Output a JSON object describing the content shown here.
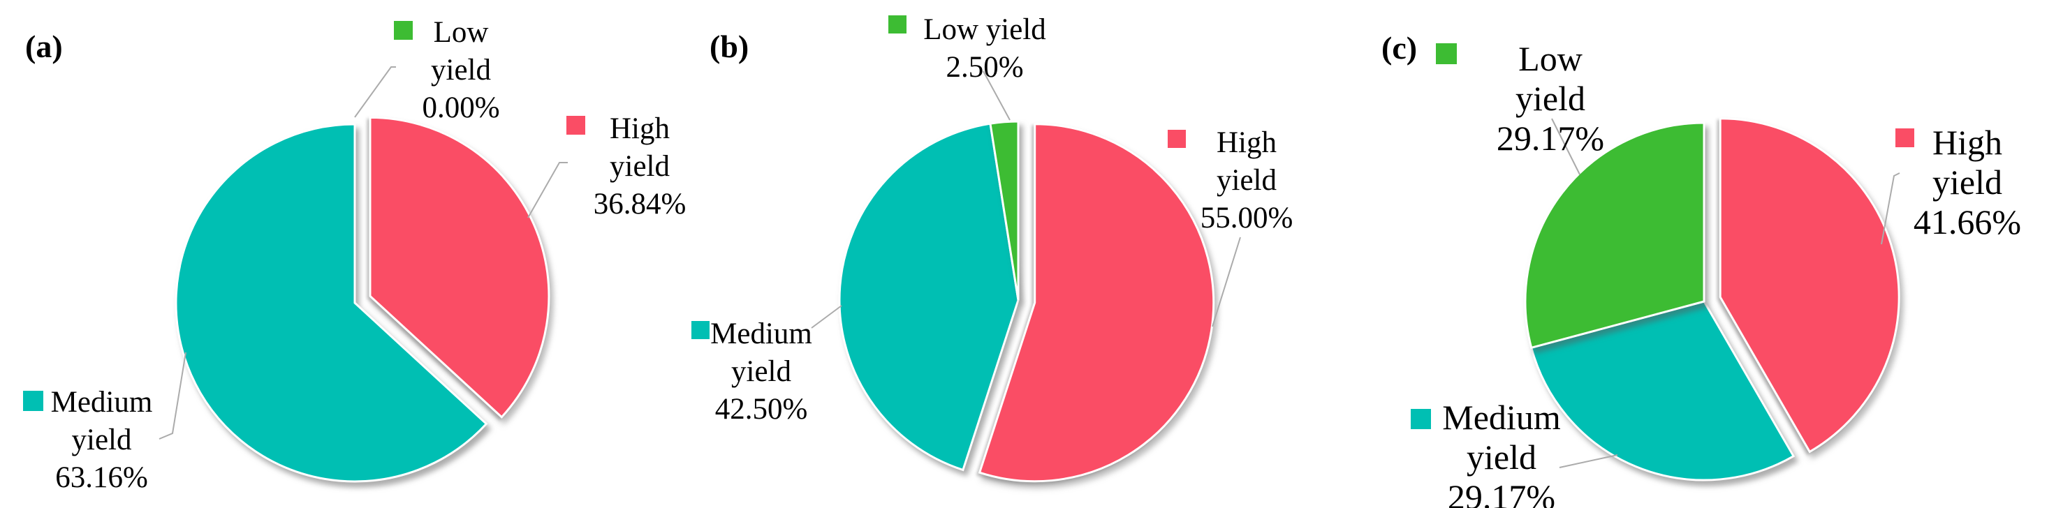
{
  "panels": [
    {
      "tag": "(a)",
      "legends": {
        "low": {
          "lines": [
            "Low",
            "yield",
            "0.00%"
          ]
        },
        "high": {
          "lines": [
            "High",
            "yield",
            "36.84%"
          ]
        },
        "medium": {
          "lines": [
            "Medium",
            "yield",
            "63.16%"
          ]
        }
      }
    },
    {
      "tag": "(b)",
      "legends": {
        "low": {
          "lines": [
            "Low yield",
            "2.50%"
          ]
        },
        "high": {
          "lines": [
            "High",
            "yield",
            "55.00%"
          ]
        },
        "medium": {
          "lines": [
            "Medium",
            "yield",
            "42.50%"
          ]
        }
      }
    },
    {
      "tag": "(c)",
      "legends": {
        "low": {
          "lines": [
            "Low yield",
            "29.17%"
          ]
        },
        "high": {
          "lines": [
            "High",
            "yield",
            "41.66%"
          ]
        },
        "medium": {
          "lines": [
            "Medium",
            "yield",
            "29.17%"
          ]
        }
      }
    }
  ],
  "chart_data": [
    {
      "type": "pie",
      "panel": "(a)",
      "start_angle": "12 o'clock",
      "direction": "clockwise",
      "slices": [
        {
          "label": "High yield",
          "value": 36.84,
          "color": "#FA4D65",
          "exploded": true
        },
        {
          "label": "Medium yield",
          "value": 63.16,
          "color": "#00BFB3",
          "exploded": false
        },
        {
          "label": "Low yield",
          "value": 0.0,
          "color": "#3DBC33",
          "exploded": false
        }
      ]
    },
    {
      "type": "pie",
      "panel": "(b)",
      "start_angle": "12 o'clock",
      "direction": "clockwise",
      "slices": [
        {
          "label": "High yield",
          "value": 55.0,
          "color": "#FA4D65",
          "exploded": true
        },
        {
          "label": "Medium yield",
          "value": 42.5,
          "color": "#00BFB3",
          "exploded": false
        },
        {
          "label": "Low yield",
          "value": 2.5,
          "color": "#3DBC33",
          "exploded": false
        }
      ]
    },
    {
      "type": "pie",
      "panel": "(c)",
      "start_angle": "12 o'clock",
      "direction": "clockwise",
      "slices": [
        {
          "label": "High yield",
          "value": 41.66,
          "color": "#FA4D65",
          "exploded": true
        },
        {
          "label": "Medium yield",
          "value": 29.17,
          "color": "#00BFB3",
          "exploded": false
        },
        {
          "label": "Low yield",
          "value": 29.17,
          "color": "#3DBC33",
          "exploded": false
        }
      ]
    }
  ]
}
